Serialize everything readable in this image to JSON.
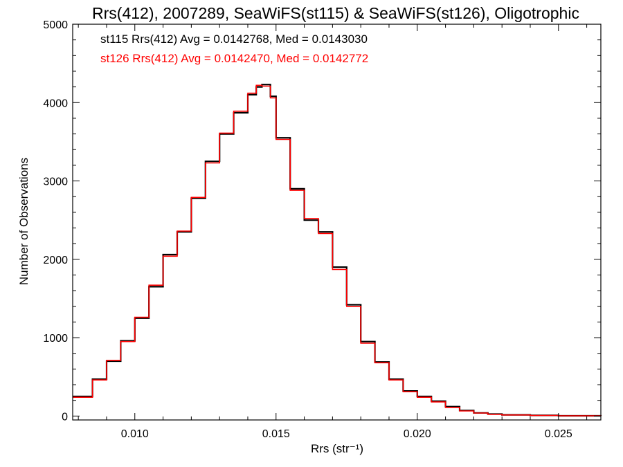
{
  "chart_data": {
    "type": "line",
    "title": "Rrs(412), 2007289, SeaWiFS(st115) & SeaWiFS(st126), Oligotrophic",
    "xlabel": "Rrs (str⁻¹)",
    "ylabel": "Number of Observations",
    "xlim": [
      0.0078,
      0.0265
    ],
    "ylim": [
      -50,
      5000
    ],
    "xticks": [
      0.01,
      0.015,
      0.02,
      0.025
    ],
    "xtick_labels": [
      "0.010",
      "0.015",
      "0.020",
      "0.025"
    ],
    "yticks": [
      0,
      1000,
      2000,
      3000,
      4000,
      5000
    ],
    "ytick_labels": [
      "0",
      "1000",
      "2000",
      "3000",
      "4000",
      "5000"
    ],
    "grid": false,
    "annotations": [
      {
        "text": "st115 Rrs(412) Avg = 0.0142768, Med = 0.0143030",
        "color": "#000000"
      },
      {
        "text": "st126 Rrs(412) Avg = 0.0142470, Med = 0.0142772",
        "color": "#ff0000"
      }
    ],
    "series": [
      {
        "color": "#000000",
        "x": [
          0.0078,
          0.0085,
          0.009,
          0.0095,
          0.01,
          0.0105,
          0.011,
          0.0115,
          0.012,
          0.0125,
          0.013,
          0.0135,
          0.014,
          0.0143,
          0.0145,
          0.0148,
          0.015,
          0.0155,
          0.016,
          0.0165,
          0.017,
          0.0175,
          0.018,
          0.0185,
          0.019,
          0.0195,
          0.02,
          0.0205,
          0.021,
          0.0215,
          0.022,
          0.0225,
          0.023,
          0.024,
          0.025,
          0.0265
        ],
        "y": [
          250,
          470,
          700,
          960,
          1250,
          1650,
          2060,
          2350,
          2780,
          3250,
          3600,
          3870,
          4100,
          4200,
          4230,
          4080,
          3550,
          2900,
          2500,
          2350,
          1900,
          1420,
          950,
          690,
          470,
          320,
          250,
          190,
          120,
          70,
          40,
          25,
          15,
          8,
          3,
          0
        ]
      },
      {
        "color": "#ff0000",
        "x": [
          0.0078,
          0.0085,
          0.009,
          0.0095,
          0.01,
          0.0105,
          0.011,
          0.0115,
          0.012,
          0.0125,
          0.013,
          0.0135,
          0.014,
          0.0143,
          0.0145,
          0.0148,
          0.015,
          0.0155,
          0.016,
          0.0165,
          0.017,
          0.0175,
          0.018,
          0.0185,
          0.019,
          0.0195,
          0.02,
          0.0205,
          0.021,
          0.0215,
          0.022,
          0.0225,
          0.023,
          0.024,
          0.025,
          0.0265
        ],
        "y": [
          240,
          460,
          710,
          950,
          1260,
          1670,
          2040,
          2360,
          2790,
          3230,
          3610,
          3890,
          4120,
          4220,
          4210,
          4060,
          3530,
          2880,
          2520,
          2330,
          1870,
          1400,
          930,
          680,
          460,
          310,
          240,
          180,
          110,
          65,
          38,
          22,
          14,
          7,
          3,
          0
        ]
      }
    ]
  }
}
